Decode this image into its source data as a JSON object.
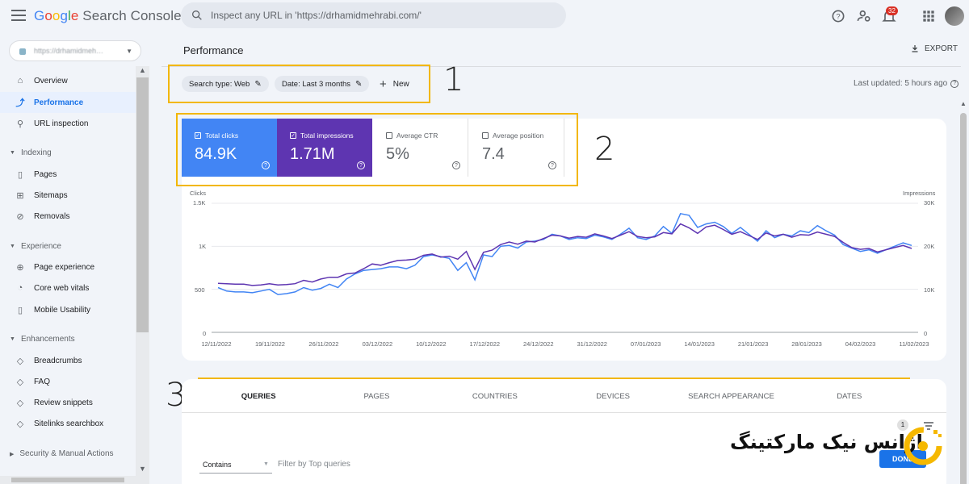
{
  "app": {
    "logo_google": [
      "G",
      "o",
      "o",
      "g",
      "l",
      "e"
    ],
    "logo_product": " Search Console",
    "search_placeholder": "Inspect any URL in 'https://drhamidmehrabi.com/'",
    "notification_count": "32"
  },
  "sidebar": {
    "property": "https://drhamidmeh…",
    "items": [
      {
        "label": "Overview",
        "icon": "home-icon"
      },
      {
        "label": "Performance",
        "icon": "trending-icon",
        "active": true
      },
      {
        "label": "URL inspection",
        "icon": "search-icon"
      }
    ],
    "sections": {
      "indexing": "Indexing",
      "indexing_items": [
        "Pages",
        "Sitemaps",
        "Removals"
      ],
      "experience": "Experience",
      "experience_items": [
        "Page experience",
        "Core web vitals",
        "Mobile Usability"
      ],
      "enhancements": "Enhancements",
      "enhancement_items": [
        "Breadcrumbs",
        "FAQ",
        "Review snippets",
        "Sitelinks searchbox"
      ],
      "security": "Security & Manual Actions"
    }
  },
  "header": {
    "title": "Performance",
    "export": "EXPORT",
    "filters": {
      "search_type": "Search type: Web",
      "date": "Date: Last 3 months",
      "new": "New"
    },
    "last_updated": "Last updated: 5 hours ago"
  },
  "metrics": {
    "clicks": {
      "label": "Total clicks",
      "value": "84.9K",
      "checked": true
    },
    "impressions": {
      "label": "Total impressions",
      "value": "1.71M",
      "checked": true
    },
    "ctr": {
      "label": "Average CTR",
      "value": "5%",
      "checked": false
    },
    "position": {
      "label": "Average position",
      "value": "7.4",
      "checked": false
    }
  },
  "annotations": [
    "1",
    "2",
    "3"
  ],
  "chart_data": {
    "type": "line",
    "left_axis_label": "Clicks",
    "right_axis_label": "Impressions",
    "left_ticks": [
      "1.5K",
      "1K",
      "500",
      "0"
    ],
    "right_ticks": [
      "30K",
      "20K",
      "10K",
      "0"
    ],
    "ylim_left": [
      0,
      1500
    ],
    "ylim_right": [
      0,
      30000
    ],
    "x_ticks": [
      "12/11/2022",
      "19/11/2022",
      "26/11/2022",
      "03/12/2022",
      "10/12/2022",
      "17/12/2022",
      "24/12/2022",
      "31/12/2022",
      "07/01/2023",
      "14/01/2023",
      "21/01/2023",
      "28/01/2023",
      "04/02/2023",
      "11/02/2023"
    ],
    "colors": {
      "clicks": "#4285f4",
      "impressions": "#5e35b1"
    },
    "series": [
      {
        "name": "Clicks",
        "axis": "left",
        "values": [
          520,
          480,
          470,
          470,
          460,
          480,
          500,
          440,
          450,
          470,
          520,
          490,
          510,
          560,
          520,
          620,
          680,
          720,
          730,
          740,
          760,
          760,
          740,
          780,
          880,
          900,
          880,
          860,
          720,
          810,
          610,
          900,
          880,
          1000,
          1010,
          980,
          1050,
          1060,
          1080,
          1140,
          1120,
          1080,
          1100,
          1090,
          1130,
          1110,
          1080,
          1140,
          1210,
          1100,
          1080,
          1120,
          1230,
          1150,
          1380,
          1360,
          1220,
          1260,
          1280,
          1230,
          1150,
          1220,
          1140,
          1060,
          1180,
          1100,
          1140,
          1120,
          1180,
          1160,
          1240,
          1180,
          1130,
          1020,
          980,
          940,
          960,
          920,
          960,
          1000,
          1040,
          1010
        ]
      },
      {
        "name": "Impressions",
        "axis": "right",
        "values": [
          11400,
          11300,
          11200,
          11200,
          10900,
          11000,
          11300,
          11000,
          11100,
          11300,
          12100,
          11700,
          12400,
          12800,
          12800,
          13600,
          13800,
          14800,
          15900,
          15600,
          16200,
          16700,
          16800,
          17000,
          17900,
          18200,
          17500,
          17700,
          17000,
          18800,
          14600,
          18600,
          19100,
          20400,
          21000,
          20500,
          21200,
          21000,
          21800,
          22600,
          22400,
          21900,
          22300,
          22100,
          22900,
          22400,
          21800,
          22600,
          23400,
          22300,
          22000,
          22200,
          23200,
          22900,
          25200,
          24300,
          23000,
          24500,
          24900,
          23900,
          22800,
          23400,
          22500,
          21600,
          23100,
          22400,
          22800,
          22100,
          22700,
          22600,
          23300,
          22800,
          22300,
          20900,
          19700,
          19300,
          19500,
          18700,
          19200,
          19700,
          20200,
          19500
        ]
      }
    ]
  },
  "tabs": [
    "QUERIES",
    "PAGES",
    "COUNTRIES",
    "DEVICES",
    "SEARCH APPEARANCE",
    "DATES"
  ],
  "table_filter": {
    "count": "1",
    "mode": "Contains",
    "placeholder": "Filter by Top queries",
    "done": "DONE"
  },
  "watermark": "آژانس نیک مارکتینگ"
}
